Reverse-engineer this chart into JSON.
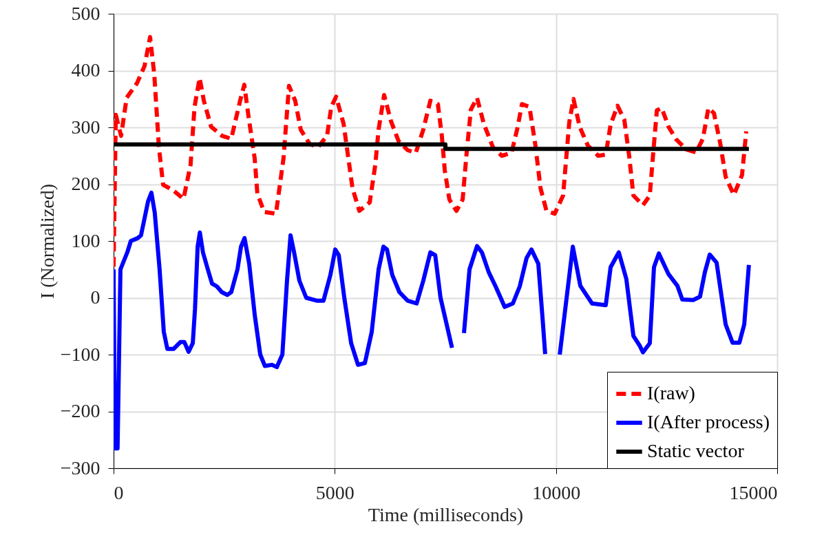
{
  "chart_data": {
    "type": "line",
    "xlabel": "Time (milliseconds)",
    "ylabel": "I (Normalized)",
    "xlim": [
      0,
      15000
    ],
    "xticks": [
      0,
      5000,
      10000,
      15000
    ],
    "ylim": [
      -300,
      500
    ],
    "yticks": [
      -300,
      -200,
      -100,
      0,
      100,
      200,
      300,
      400,
      500
    ],
    "grid": true,
    "legend": "bottom right",
    "marker": "none",
    "series": [
      {
        "name": "I(raw)",
        "color": "#ff0000",
        "line_style": "dashed",
        "x": [
          0,
          50,
          170,
          295,
          530,
          700,
          825,
          920,
          1025,
          1120,
          1350,
          1580,
          1740,
          1830,
          1945,
          2040,
          2205,
          2455,
          2660,
          2860,
          2955,
          3045,
          3190,
          3250,
          3405,
          3670,
          3840,
          3965,
          4105,
          4230,
          4430,
          4620,
          4825,
          4920,
          5030,
          5200,
          5290,
          5400,
          5555,
          5790,
          5915,
          5990,
          6115,
          6270,
          6440,
          6645,
          6830,
          7000,
          7160,
          7330,
          7420,
          7485,
          7590,
          7750,
          7890,
          7980,
          8075,
          8215,
          8370,
          8575,
          8775,
          8995,
          9135,
          9230,
          9400,
          9530,
          9650,
          9785,
          9970,
          10160,
          10225,
          10300,
          10395,
          10535,
          10720,
          10955,
          11125,
          11235,
          11390,
          11545,
          11655,
          11750,
          11965,
          12120,
          12200,
          12280,
          12390,
          12545,
          12715,
          12950,
          13165,
          13320,
          13445,
          13570,
          13710,
          13835,
          14020,
          14205,
          14300
        ],
        "values": [
          55,
          322,
          285,
          352,
          378,
          408,
          459,
          393,
          265,
          199,
          189,
          174,
          234,
          336,
          387,
          347,
          301,
          285,
          280,
          347,
          375,
          322,
          245,
          183,
          151,
          148,
          245,
          373,
          347,
          296,
          271,
          265,
          285,
          336,
          354,
          306,
          255,
          193,
          153,
          168,
          234,
          296,
          357,
          311,
          276,
          260,
          255,
          296,
          347,
          341,
          285,
          225,
          173,
          153,
          173,
          255,
          331,
          352,
          306,
          265,
          250,
          255,
          301,
          341,
          336,
          271,
          193,
          153,
          148,
          180,
          240,
          309,
          350,
          301,
          268,
          250,
          252,
          305,
          338,
          313,
          249,
          180,
          163,
          180,
          257,
          330,
          334,
          301,
          279,
          261,
          256,
          280,
          334,
          325,
          273,
          213,
          181,
          216,
          293
        ]
      },
      {
        "name": "I(After process)",
        "color": "#0000ff",
        "line_style": "solid",
        "x": [
          0,
          30,
          90,
          155,
          310,
          390,
          545,
          620,
          700,
          780,
          855,
          930,
          1040,
          1135,
          1215,
          1355,
          1510,
          1600,
          1695,
          1790,
          1840,
          1900,
          1950,
          2020,
          2130,
          2225,
          2335,
          2445,
          2570,
          2660,
          2800,
          2880,
          2960,
          3065,
          3190,
          3315,
          3420,
          3580,
          3690,
          3815,
          3920,
          4000,
          4080,
          4200,
          4355,
          4590,
          4745,
          4900,
          5010,
          5090,
          5215,
          5370,
          5525,
          5680,
          5835,
          5990,
          6100,
          6180,
          6300,
          6460,
          6645,
          6850,
          7000,
          7160,
          7270,
          7390,
          7650,
          7750,
          7920,
          8045,
          8215,
          8325,
          8480,
          8635,
          8840,
          9025,
          9180,
          9335,
          9445,
          9600,
          9700,
          9755,
          9900,
          10085,
          10380,
          10550,
          10815,
          11125,
          11235,
          11420,
          11590,
          11750,
          11890,
          11965,
          12120,
          12215,
          12325,
          12540,
          12745,
          12855,
          13100,
          13255,
          13365,
          13475,
          13630,
          13835,
          13990,
          14145,
          14255,
          14360
        ],
        "values": [
          50,
          -265,
          -265,
          50,
          80,
          100,
          105,
          110,
          140,
          170,
          185,
          150,
          50,
          -60,
          -90,
          -90,
          -78,
          -78,
          -95,
          -80,
          -20,
          90,
          115,
          80,
          50,
          25,
          20,
          10,
          5,
          10,
          50,
          90,
          105,
          60,
          -30,
          -100,
          -120,
          -118,
          -122,
          -100,
          30,
          110,
          80,
          30,
          0,
          -5,
          -5,
          40,
          85,
          75,
          0,
          -80,
          -118,
          -115,
          -60,
          50,
          90,
          85,
          40,
          10,
          -5,
          -10,
          30,
          80,
          75,
          0,
          -88,
          null,
          -62,
          50,
          91,
          80,
          45,
          20,
          -16,
          -10,
          20,
          70,
          85,
          60,
          -40,
          -99,
          null,
          -100,
          90,
          21,
          -10,
          -13,
          54,
          80,
          33,
          -67,
          -84,
          -96,
          -80,
          54,
          78,
          42,
          21,
          -3,
          -4,
          2,
          45,
          76,
          62,
          -47,
          -79,
          -79,
          -47,
          58
        ]
      },
      {
        "name": "Static vector",
        "color": "#000000",
        "line_style": "solid",
        "type": "step",
        "x": [
          0,
          7500,
          14360
        ],
        "values": [
          270,
          262,
          262
        ]
      }
    ]
  }
}
